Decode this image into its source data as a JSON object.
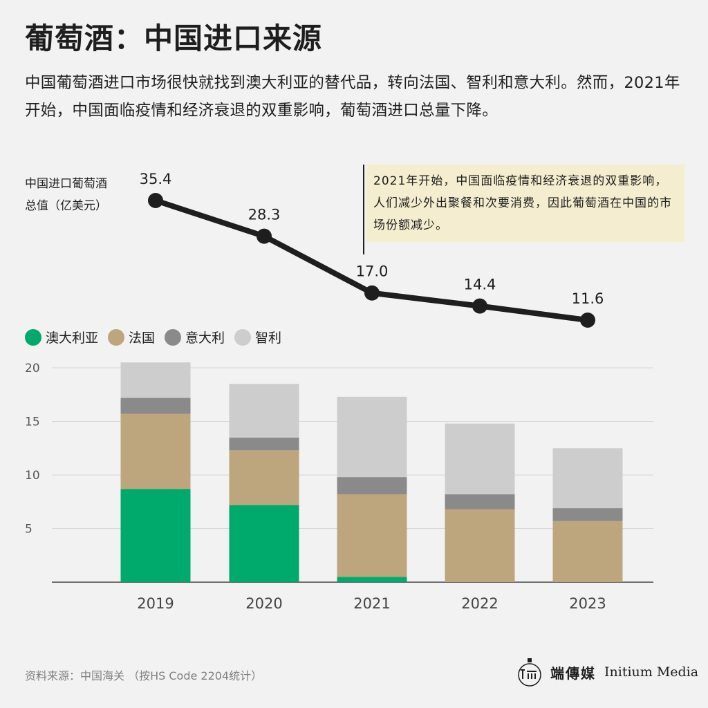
{
  "title": "葡萄酒：中国进口来源",
  "subtitle": "中国葡萄酒进口市场很快就找到澳大利亚的替代品，转向法国、智利和意大利。然而，2021年开始，中国面临疫情和经济衰退的双重影响，葡萄酒进口总量下降。",
  "annotation": "2021年开始，中国面临疫情和经济衰退的双重影响，人们减少外出聚餐和次要消费，因此葡萄酒在中国的市场份额减少。",
  "source": "资料来源：中国海关 （按HS Code 2204统计）",
  "brand": {
    "cn": "端傳媒",
    "en": "Initium Media"
  },
  "chart_data": [
    {
      "type": "line",
      "title": "中国进口葡萄酒\n总值（亿美元）",
      "x": [
        "2019",
        "2020",
        "2021",
        "2022",
        "2023"
      ],
      "values": [
        35.4,
        28.3,
        17.0,
        14.4,
        11.6
      ],
      "value_labels": [
        "35.4",
        "28.3",
        "17.0",
        "14.4",
        "11.6"
      ],
      "color": "#1e1e1e"
    },
    {
      "type": "bar",
      "stacked": true,
      "categories": [
        "2019",
        "2020",
        "2021",
        "2022",
        "2023"
      ],
      "yticks": [
        "5",
        "10",
        "15",
        "20"
      ],
      "ylim": [
        0,
        20
      ],
      "grid": true,
      "legend_position": "top-left",
      "series": [
        {
          "name": "澳大利亚",
          "color": "#00aa6c",
          "values": [
            8.7,
            7.2,
            0.5,
            0,
            0
          ]
        },
        {
          "name": "法国",
          "color": "#bda57d",
          "values": [
            7.0,
            5.1,
            7.7,
            6.8,
            5.7
          ]
        },
        {
          "name": "意大利",
          "color": "#8a8a8a",
          "values": [
            1.5,
            1.2,
            1.6,
            1.4,
            1.2
          ]
        },
        {
          "name": "智利",
          "color": "#cdcdcd",
          "values": [
            3.3,
            5.0,
            7.5,
            6.6,
            5.6
          ]
        }
      ]
    }
  ]
}
